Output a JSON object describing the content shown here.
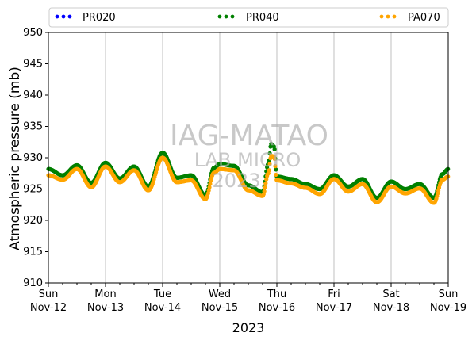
{
  "chart_data": {
    "type": "scatter",
    "xlabel": "2023",
    "ylabel": "Atmospheric pressure (mb)",
    "ylim": [
      910,
      950
    ],
    "xlim": [
      "2023-11-12",
      "2023-11-19"
    ],
    "grid": "vertical lines at day ticks",
    "legend_placement": "top, above plot",
    "yticks": [
      "910",
      "915",
      "920",
      "925",
      "930",
      "935",
      "940",
      "945",
      "950"
    ],
    "xticks": [
      {
        "day": "Sun",
        "date": "Nov-12"
      },
      {
        "day": "Mon",
        "date": "Nov-13"
      },
      {
        "day": "Tue",
        "date": "Nov-14"
      },
      {
        "day": "Wed",
        "date": "Nov-15"
      },
      {
        "day": "Thu",
        "date": "Nov-16"
      },
      {
        "day": "Fri",
        "date": "Nov-17"
      },
      {
        "day": "Sat",
        "date": "Nov-18"
      },
      {
        "day": "Sun",
        "date": "Nov-19"
      }
    ],
    "watermark": {
      "line1": "IAG-MATAO",
      "line2": "LAB MICRO",
      "line3": "2023"
    },
    "x_unit": "days after Nov-12 00:00",
    "series": [
      {
        "name": "PR020",
        "color": "#0000ff",
        "x": [],
        "y": []
      },
      {
        "name": "PR040",
        "color": "#008000",
        "x": [
          0,
          0.25,
          0.5,
          0.75,
          1,
          1.25,
          1.5,
          1.75,
          2,
          2.25,
          2.5,
          2.75,
          2.9,
          3,
          3.25,
          3.5,
          3.75,
          3.85,
          3.9,
          3.95,
          4,
          4.25,
          4.5,
          4.75,
          5,
          5.25,
          5.5,
          5.75,
          6,
          6.25,
          6.5,
          6.75,
          6.9,
          7
        ],
        "y": [
          928.2,
          927.2,
          928.8,
          926.0,
          929.2,
          926.7,
          928.6,
          925.4,
          930.8,
          926.8,
          927.2,
          924.0,
          928.4,
          929.0,
          928.7,
          925.6,
          924.5,
          929.0,
          932.2,
          931.8,
          927.0,
          926.6,
          925.8,
          925.0,
          927.2,
          925.4,
          926.6,
          923.6,
          926.2,
          925.0,
          925.8,
          923.6,
          927.4,
          928.2
        ]
      },
      {
        "name": "PA070",
        "color": "#ffa500",
        "x": [
          0,
          0.25,
          0.5,
          0.75,
          1,
          1.25,
          1.5,
          1.75,
          2,
          2.25,
          2.5,
          2.75,
          2.9,
          3,
          3.25,
          3.5,
          3.75,
          3.85,
          3.9,
          3.95,
          4,
          4.25,
          4.5,
          4.75,
          5,
          5.25,
          5.5,
          5.75,
          6,
          6.25,
          6.5,
          6.75,
          6.9,
          7
        ],
        "y": [
          927.2,
          926.5,
          928.2,
          925.3,
          928.6,
          926.1,
          928.0,
          924.8,
          930.0,
          926.1,
          926.4,
          923.4,
          927.6,
          928.2,
          928.0,
          924.8,
          923.9,
          927.5,
          930.3,
          930.2,
          926.4,
          925.9,
          925.2,
          924.2,
          926.6,
          924.6,
          925.8,
          922.9,
          925.4,
          924.3,
          925.1,
          922.8,
          926.5,
          927.0
        ]
      }
    ]
  }
}
